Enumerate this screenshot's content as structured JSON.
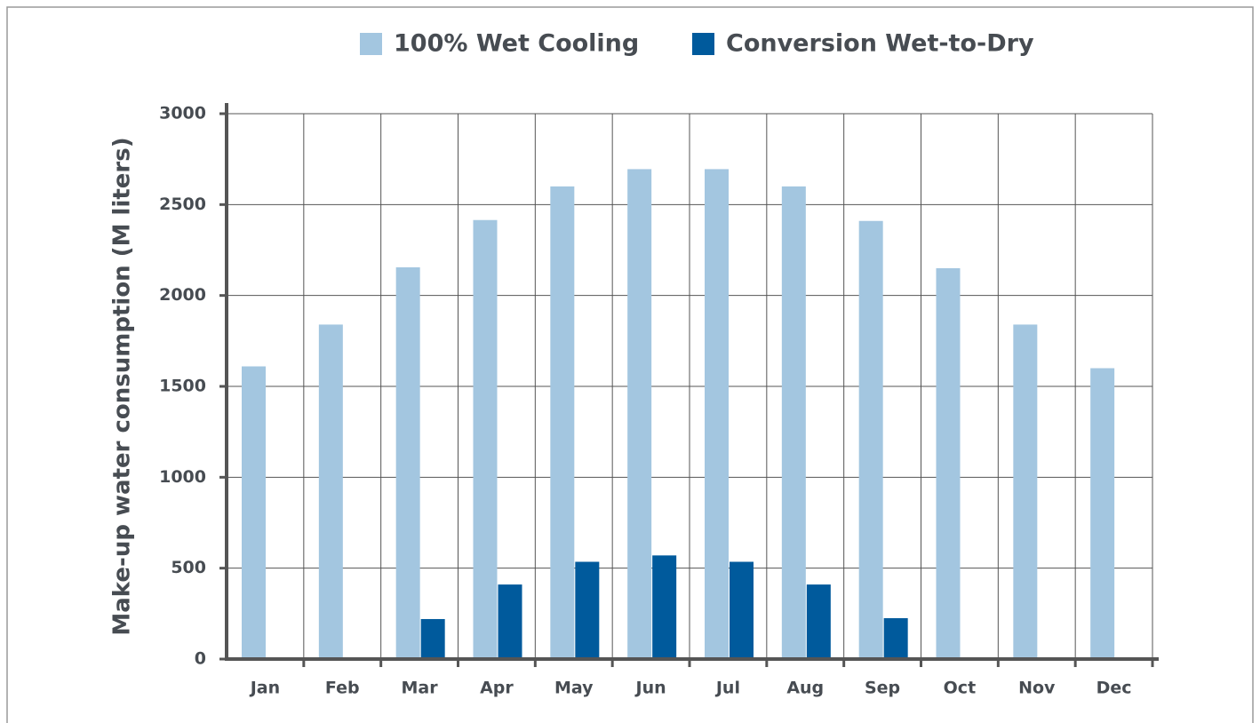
{
  "chart_data": {
    "type": "bar",
    "y_label": "Make-up water consumption (M liters)",
    "categories": [
      "Jan",
      "Feb",
      "Mar",
      "Apr",
      "May",
      "Jun",
      "Jul",
      "Aug",
      "Sep",
      "Oct",
      "Nov",
      "Dec"
    ],
    "series": [
      {
        "name": "100% Wet Cooling",
        "color": "#a3c6e0",
        "values": [
          1610,
          1840,
          2155,
          2415,
          2600,
          2695,
          2695,
          2600,
          2410,
          2150,
          1840,
          1600
        ]
      },
      {
        "name": "Conversion Wet-to-Dry",
        "color": "#005a9c",
        "values": [
          0,
          0,
          220,
          410,
          535,
          570,
          535,
          410,
          225,
          0,
          0,
          0
        ]
      }
    ],
    "ylim": [
      0,
      3000
    ],
    "yticks": [
      0,
      500,
      1000,
      1500,
      2000,
      2500,
      3000
    ],
    "grid": true,
    "legend": "top"
  }
}
